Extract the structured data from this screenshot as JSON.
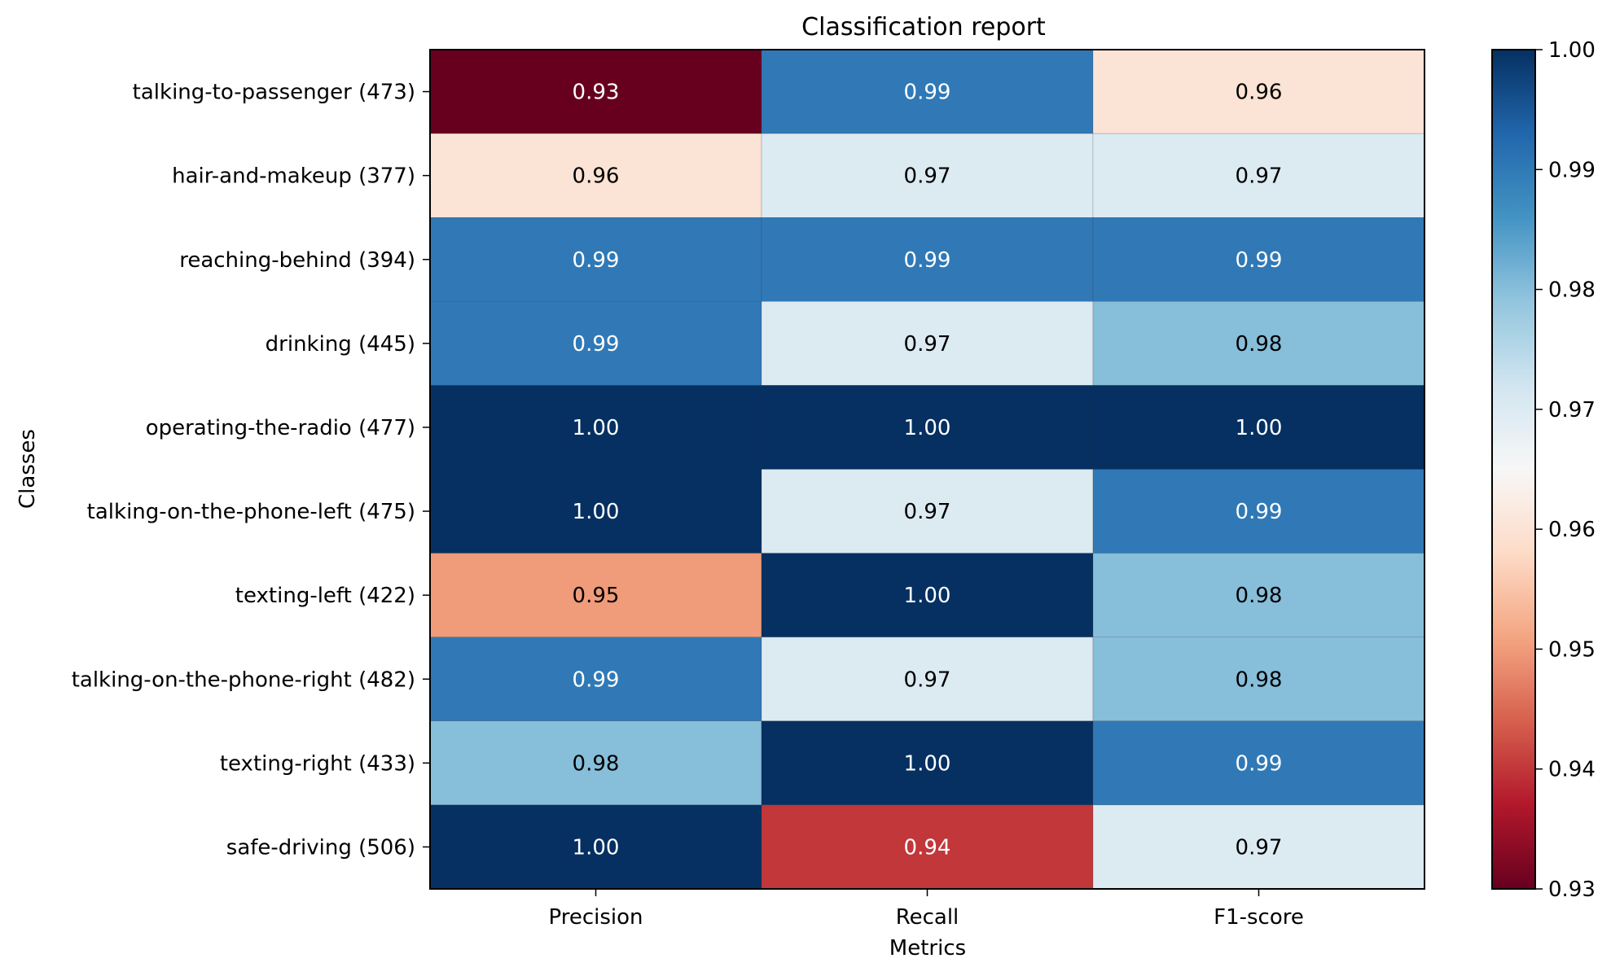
{
  "chart_data": {
    "type": "heatmap",
    "title": "Classification report",
    "xlabel": "Metrics",
    "ylabel": "Classes",
    "columns": [
      "Precision",
      "Recall",
      "F1-score"
    ],
    "rows": [
      "talking-to-passenger (473)",
      "hair-and-makeup (377)",
      "reaching-behind (394)",
      "drinking (445)",
      "operating-the-radio (477)",
      "talking-on-the-phone-left (475)",
      "texting-left (422)",
      "talking-on-the-phone-right (482)",
      "texting-right (433)",
      "safe-driving (506)"
    ],
    "values": [
      [
        0.93,
        0.99,
        0.96
      ],
      [
        0.96,
        0.97,
        0.97
      ],
      [
        0.99,
        0.99,
        0.99
      ],
      [
        0.99,
        0.97,
        0.98
      ],
      [
        1.0,
        1.0,
        1.0
      ],
      [
        1.0,
        0.97,
        0.99
      ],
      [
        0.95,
        1.0,
        0.98
      ],
      [
        0.99,
        0.97,
        0.98
      ],
      [
        0.98,
        1.0,
        0.99
      ],
      [
        1.0,
        0.94,
        0.97
      ]
    ],
    "value_labels": [
      [
        "0.93",
        "0.99",
        "0.96"
      ],
      [
        "0.96",
        "0.97",
        "0.97"
      ],
      [
        "0.99",
        "0.99",
        "0.99"
      ],
      [
        "0.99",
        "0.97",
        "0.98"
      ],
      [
        "1.00",
        "1.00",
        "1.00"
      ],
      [
        "1.00",
        "0.97",
        "0.99"
      ],
      [
        "0.95",
        "1.00",
        "0.98"
      ],
      [
        "0.99",
        "0.97",
        "0.98"
      ],
      [
        "0.98",
        "1.00",
        "0.99"
      ],
      [
        "1.00",
        "0.94",
        "0.97"
      ]
    ],
    "colormap": "RdBu",
    "colorbar": {
      "range": [
        0.93,
        1.0
      ],
      "ticks": [
        0.93,
        0.94,
        0.95,
        0.96,
        0.97,
        0.98,
        0.99,
        1.0
      ],
      "tick_labels": [
        "0.93",
        "0.94",
        "0.95",
        "0.96",
        "0.97",
        "0.98",
        "0.99",
        "1.00"
      ],
      "placement": "right"
    },
    "grid": false
  }
}
